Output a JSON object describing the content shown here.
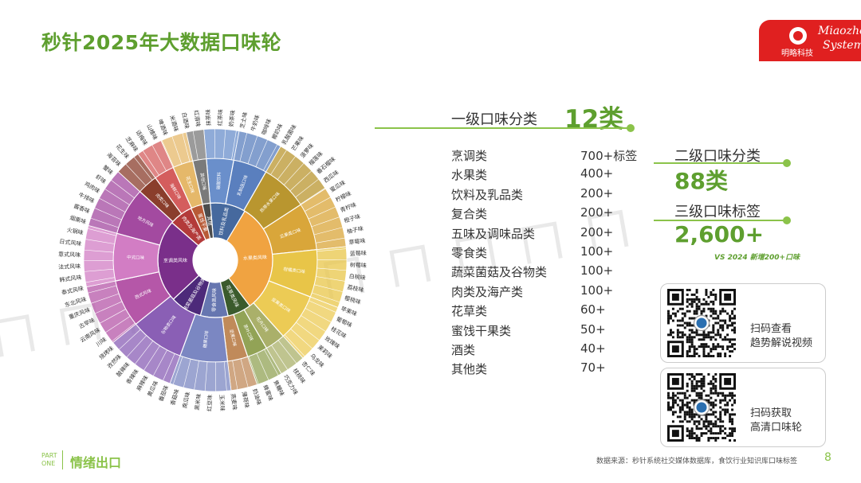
{
  "page": {
    "title": "秒针2025年大数据口味轮",
    "section": "情绪出口",
    "part_label": [
      "PART",
      "ONE"
    ],
    "source": "数据来源：秒针系统社交媒体数据库，食饮行业知识库口味标签",
    "page_number": "8",
    "watermark": "ㄇㄇㄇㄇㄇㄇㄇㄇㄇㄇ"
  },
  "logo": {
    "cn": "明略科技",
    "en1": "Miaozhen",
    "en2": "Systems"
  },
  "stats": {
    "l1_label": "一级口味分类",
    "l1_value": "12类",
    "l2_label": "二级口味分类",
    "l2_value": "88类",
    "l3_label": "三级口味标签",
    "l3_value": "2,600+",
    "l3_note": "VS 2024 新增200+口味"
  },
  "categories": [
    {
      "name": "烹调类",
      "value": "700+标签"
    },
    {
      "name": "水果类",
      "value": "400+"
    },
    {
      "name": "饮料及乳品类",
      "value": "200+"
    },
    {
      "name": "复合类",
      "value": "200+"
    },
    {
      "name": "五味及调味品类",
      "value": "200+"
    },
    {
      "name": "零食类",
      "value": "100+"
    },
    {
      "name": "蔬菜菌菇及谷物类",
      "value": "100+"
    },
    {
      "name": "肉类及海产类",
      "value": "100+"
    },
    {
      "name": "花草类",
      "value": "60+"
    },
    {
      "name": "蜜饯干果类",
      "value": "50+"
    },
    {
      "name": "酒类",
      "value": "40+"
    },
    {
      "name": "其他类",
      "value": "70+"
    }
  ],
  "qr": [
    {
      "line1": "扫码查看",
      "line2": "趋势解说视频"
    },
    {
      "line1": "扫码获取",
      "line2": "高清口味轮"
    }
  ],
  "colors": {
    "accent": "#5e9f2f",
    "accent_light": "#8bc34a",
    "brand_red": "#e02020"
  },
  "wheel": {
    "inner": [
      {
        "label": "饮料及乳品类",
        "color": "#46699e",
        "weight": 9
      },
      {
        "label": "水果类风味",
        "color": "#f0a341",
        "weight": 28
      },
      {
        "label": "花草类风味",
        "color": "#3b5b2d",
        "weight": 6
      },
      {
        "label": "零食类风味",
        "color": "#6676b0",
        "weight": 7
      },
      {
        "label": "蔬菜菌菇及谷物类",
        "color": "#4d2a7a",
        "weight": 8
      },
      {
        "label": "烹调类风味",
        "color": "#7a2f8a",
        "weight": 21
      },
      {
        "label": "肉类及海产类",
        "color": "#b33a3a",
        "weight": 6
      },
      {
        "label": "蜜饯干果",
        "color": "#b85a36",
        "weight": 3
      },
      {
        "label": "其他",
        "color": "#4c4c4c",
        "weight": 2
      }
    ],
    "middle": [
      {
        "label": "碳酸饮料",
        "color": "#6a8fcb",
        "weight": 4
      },
      {
        "label": "乳制品口味",
        "color": "#5a7fbe",
        "weight": 5
      },
      {
        "label": "热带水果口味",
        "color": "#b9962f",
        "weight": 7
      },
      {
        "label": "瓜果类口味",
        "color": "#d9a63a",
        "weight": 7
      },
      {
        "label": "柑橘类口味",
        "color": "#e8c548",
        "weight": 7
      },
      {
        "label": "浆果类口味",
        "color": "#eccb55",
        "weight": 7
      },
      {
        "label": "花卉口味",
        "color": "#aab06a",
        "weight": 3
      },
      {
        "label": "茶叶口味",
        "color": "#92a356",
        "weight": 3
      },
      {
        "label": "坚果口味",
        "color": "#c08a5a",
        "weight": 3
      },
      {
        "label": "糖果口味",
        "color": "#7b87c2",
        "weight": 7
      },
      {
        "label": "谷物类口味",
        "color": "#8a5fb5",
        "weight": 8
      },
      {
        "label": "西式风味",
        "color": "#b557a8",
        "weight": 7
      },
      {
        "label": "中式口味",
        "color": "#d27dc4",
        "weight": 7
      },
      {
        "label": "地方风味",
        "color": "#a34aa0",
        "weight": 7
      },
      {
        "label": "肉类口味",
        "color": "#8a3e2c",
        "weight": 3
      },
      {
        "label": "海鲜口味",
        "color": "#d45d5d",
        "weight": 3
      },
      {
        "label": "花生口味",
        "color": "#e5b86a",
        "weight": 3
      },
      {
        "label": "其他口味",
        "color": "#7a7a7a",
        "weight": 2
      }
    ],
    "outer_labels": [
      "抹茶味",
      "红茶味",
      "奶茶味",
      "芝士味",
      "牛奶味",
      "咖啡味",
      "椰奶味",
      "乳酸菌味",
      "芒果味",
      "菠萝味",
      "榴莲味",
      "番石榴味",
      "西瓜味",
      "蜜瓜味",
      "柠檬味",
      "青柠味",
      "橙子味",
      "柚子味",
      "草莓味",
      "蓝莓味",
      "树莓味",
      "白桃味",
      "荔枝味",
      "樱桃味",
      "苹果味",
      "葡萄味",
      "桂花味",
      "玫瑰味",
      "茉莉味",
      "乌龙味",
      "杏仁味",
      "核桃味",
      "巧克力味",
      "焦糖味",
      "蜂蜜味",
      "奶油味",
      "薄荷味",
      "燕麦味",
      "玉米味",
      "红豆味",
      "黑米味",
      "南瓜味",
      "香菇味",
      "番茄味",
      "黄瓜味",
      "麻辣味",
      "香辣味",
      "酸辣味",
      "孜然味",
      "烧烤味",
      "川味",
      "云南风味",
      "古早味",
      "重庆风味",
      "东北风味",
      "泰式风味",
      "韩式风味",
      "法式风味",
      "意式风味",
      "日式风味",
      "火锅味",
      "烟熏味",
      "酱香味",
      "牛排味",
      "鸡肉味",
      "虾味",
      "蟹味",
      "海苔味",
      "花生味",
      "芝麻味",
      "话梅味",
      "山楂味",
      "啤酒味",
      "米酒味",
      "白酒味",
      "红酒味"
    ]
  }
}
